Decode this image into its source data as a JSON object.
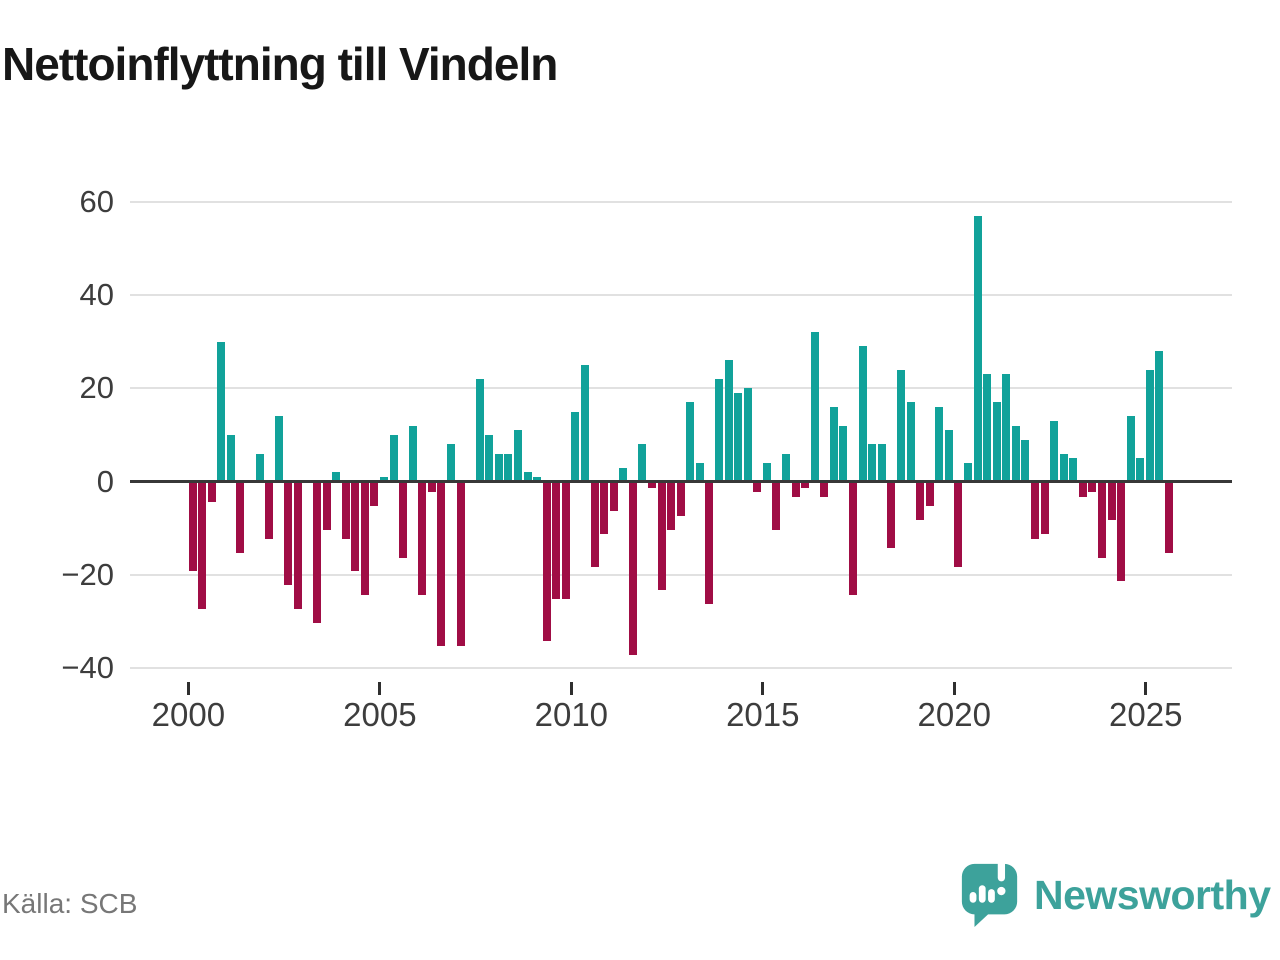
{
  "title": "Nettoinflyttning till Vindeln",
  "source": "Källa: SCB",
  "branding": {
    "name": "Newsworthy",
    "icon": "newsworthy-speech-bubble-chart-icon"
  },
  "colors": {
    "positive": "#11a29a",
    "negative": "#a00d45",
    "grid": "#e1e1e1",
    "zero_line": "#383838",
    "axis_text": "#3d3d3d",
    "title_text": "#171717",
    "source_text": "#777777",
    "brand_teal": "#3da29b"
  },
  "chart_data": {
    "type": "bar",
    "title": "Nettoinflyttning till Vindeln",
    "frequency": "quarterly",
    "series_name": "Nettoinflyttning",
    "grid": true,
    "y_ticks": [
      60,
      40,
      20,
      0,
      -20,
      -40
    ],
    "ylim": [
      -44,
      64
    ],
    "x_tick_labels": [
      "2000",
      "2005",
      "2010",
      "2015",
      "2020",
      "2025"
    ],
    "years": [
      {
        "year": 2000,
        "values": [
          -19,
          -27,
          -4,
          30
        ]
      },
      {
        "year": 2001,
        "values": [
          10,
          -15,
          0,
          6
        ]
      },
      {
        "year": 2002,
        "values": [
          -12,
          14,
          -22,
          -27
        ]
      },
      {
        "year": 2003,
        "values": [
          0,
          -30,
          -10,
          2
        ]
      },
      {
        "year": 2004,
        "values": [
          -12,
          -19,
          -24,
          -5
        ]
      },
      {
        "year": 2005,
        "values": [
          1,
          10,
          -16,
          12
        ]
      },
      {
        "year": 2006,
        "values": [
          -24,
          -2,
          -35,
          8
        ]
      },
      {
        "year": 2007,
        "values": [
          -35,
          0,
          22,
          10
        ]
      },
      {
        "year": 2008,
        "values": [
          6,
          6,
          11,
          2
        ]
      },
      {
        "year": 2009,
        "values": [
          1,
          -34,
          -25,
          -25
        ]
      },
      {
        "year": 2010,
        "values": [
          15,
          25,
          -18,
          -11
        ]
      },
      {
        "year": 2011,
        "values": [
          -6,
          3,
          -37,
          8
        ]
      },
      {
        "year": 2012,
        "values": [
          -1,
          -23,
          -10,
          -7
        ]
      },
      {
        "year": 2013,
        "values": [
          17,
          4,
          -26,
          22
        ]
      },
      {
        "year": 2014,
        "values": [
          26,
          19,
          20,
          -2
        ]
      },
      {
        "year": 2015,
        "values": [
          4,
          -10,
          6,
          -3
        ]
      },
      {
        "year": 2016,
        "values": [
          -1,
          32,
          -3,
          16
        ]
      },
      {
        "year": 2017,
        "values": [
          12,
          -24,
          29,
          8
        ]
      },
      {
        "year": 2018,
        "values": [
          8,
          -14,
          24,
          17
        ]
      },
      {
        "year": 2019,
        "values": [
          -8,
          -5,
          16,
          11
        ]
      },
      {
        "year": 2020,
        "values": [
          -18,
          4,
          57,
          23
        ]
      },
      {
        "year": 2021,
        "values": [
          17,
          23,
          12,
          9
        ]
      },
      {
        "year": 2022,
        "values": [
          -12,
          -11,
          13,
          6
        ]
      },
      {
        "year": 2023,
        "values": [
          5,
          -3,
          -2,
          -16
        ]
      },
      {
        "year": 2024,
        "values": [
          -8,
          -21,
          14,
          5
        ]
      },
      {
        "year": 2025,
        "values": [
          24,
          28,
          -15
        ]
      }
    ]
  }
}
